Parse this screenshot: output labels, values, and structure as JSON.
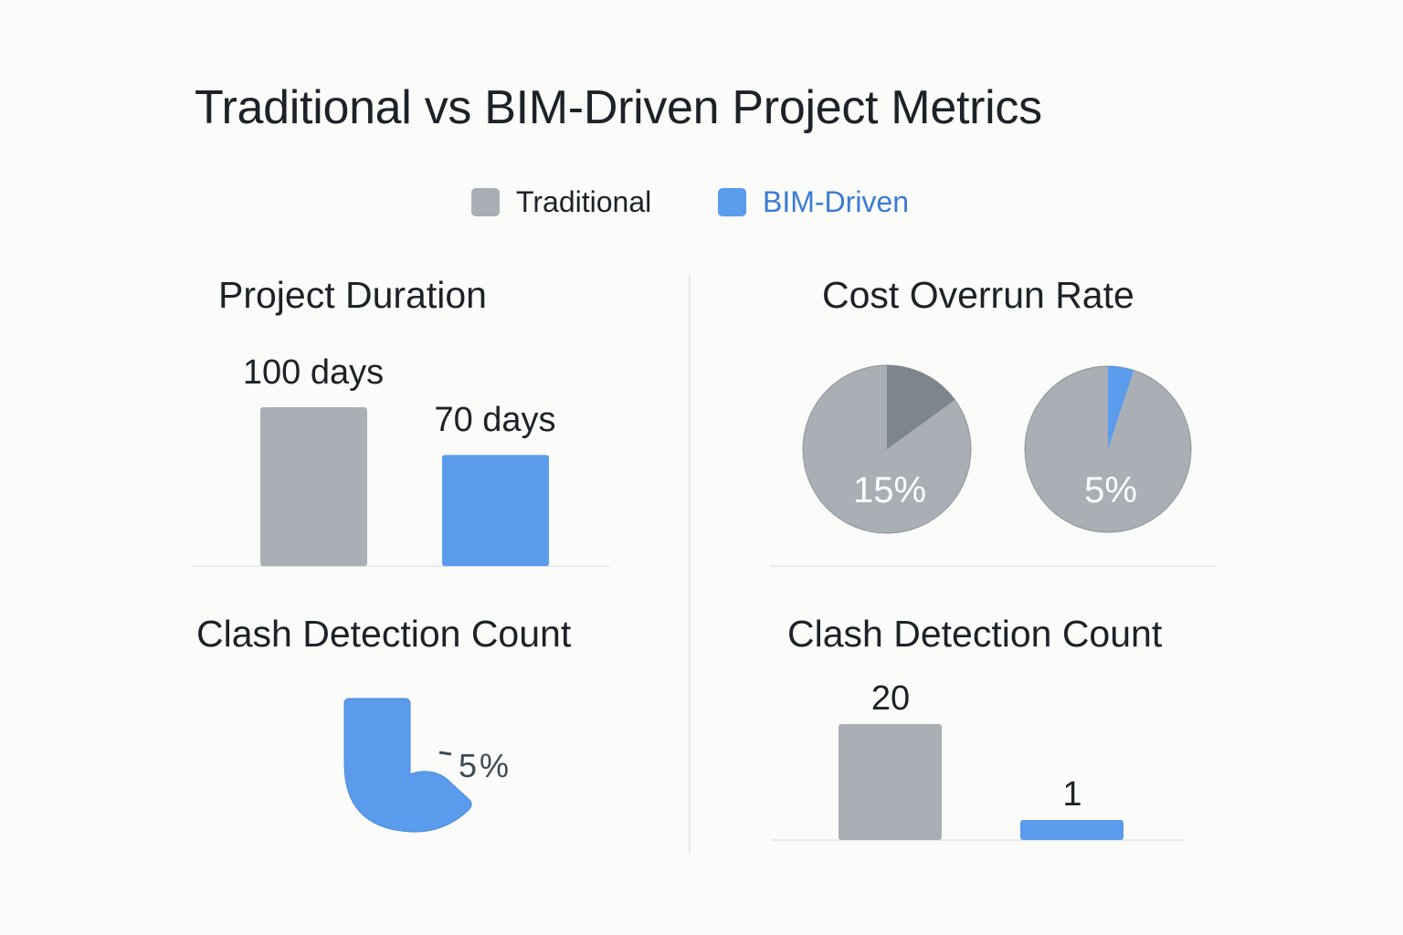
{
  "title": "Traditional vs BIM-Driven Project Metrics",
  "legend": [
    {
      "label": "Traditional",
      "color": "#a9afb5",
      "text_color": "#1c2228"
    },
    {
      "label": "BIM-Driven",
      "color": "#5b9bec",
      "text_color": "#3a7bd5"
    }
  ],
  "colors": {
    "traditional": "#a9afb5",
    "bim": "#5b9bec",
    "highlight_slice": "#7d868c",
    "label_dark": "#3d4a55"
  },
  "chart_data": [
    {
      "type": "bar",
      "title": "Project Duration",
      "categories": [
        "Traditional",
        "BIM-Driven"
      ],
      "values": [
        100,
        70
      ],
      "data_labels": [
        "100 days",
        "70 days"
      ],
      "unit": "days"
    },
    {
      "type": "pie",
      "title": "Cost Overrun Rate",
      "pies": [
        {
          "series": "Traditional",
          "value": 15,
          "label": "15%"
        },
        {
          "series": "BIM-Driven",
          "value": 5,
          "label": "5%"
        }
      ]
    },
    {
      "type": "pie",
      "title": "Clash Detection Count",
      "pies": [
        {
          "series": "BIM-Driven",
          "label": "5%"
        }
      ]
    },
    {
      "type": "bar",
      "title": "Clash Detection Count",
      "categories": [
        "Traditional",
        "BIM-Driven"
      ],
      "values": [
        20,
        1
      ],
      "data_labels": [
        "20",
        "1"
      ]
    }
  ]
}
